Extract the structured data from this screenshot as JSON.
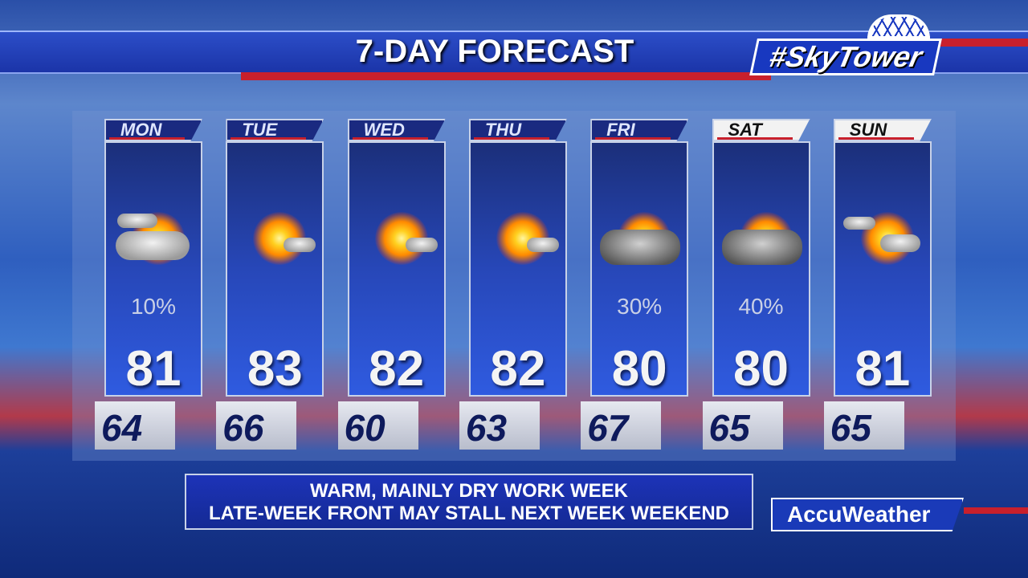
{
  "header": {
    "title": "7-DAY FORECAST",
    "logo": "#SkyTower"
  },
  "days": [
    {
      "day": "MON",
      "icon": "partly-cloudy-icon",
      "precip": "10%",
      "high": "81",
      "low": "64",
      "weekend": false
    },
    {
      "day": "TUE",
      "icon": "mostly-sunny-icon",
      "precip": "",
      "high": "83",
      "low": "66",
      "weekend": false
    },
    {
      "day": "WED",
      "icon": "mostly-sunny-icon",
      "precip": "",
      "high": "82",
      "low": "60",
      "weekend": false
    },
    {
      "day": "THU",
      "icon": "mostly-sunny-icon",
      "precip": "",
      "high": "82",
      "low": "63",
      "weekend": false
    },
    {
      "day": "FRI",
      "icon": "cloudy-shower-icon",
      "precip": "30%",
      "high": "80",
      "low": "67",
      "weekend": false
    },
    {
      "day": "SAT",
      "icon": "cloudy-shower-icon",
      "precip": "40%",
      "high": "80",
      "low": "65",
      "weekend": true
    },
    {
      "day": "SUN",
      "icon": "partly-sunny-icon",
      "precip": "",
      "high": "81",
      "low": "65",
      "weekend": true
    }
  ],
  "message": {
    "line1": "WARM, MAINLY DRY WORK WEEK",
    "line2": "LATE-WEEK FRONT MAY STALL NEXT WEEK WEEKEND"
  },
  "brand": "AccuWeather",
  "colors": {
    "accent_red": "#c8202c",
    "panel_blue": "#2747b8"
  }
}
